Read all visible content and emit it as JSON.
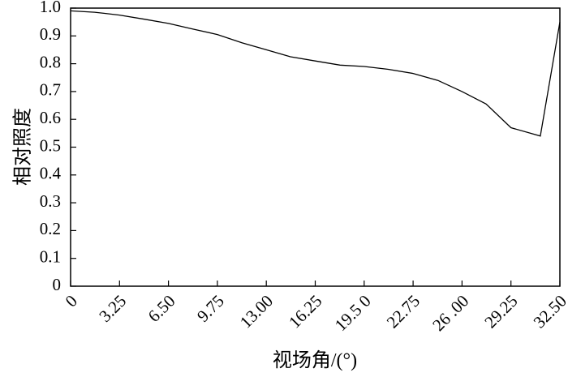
{
  "chart_data": {
    "type": "line",
    "title": "",
    "xlabel": "视场角/(°)",
    "ylabel": "相对照度",
    "xlim": [
      0,
      32.5
    ],
    "ylim": [
      0,
      1.0
    ],
    "grid": false,
    "x_ticks": [
      0,
      3.25,
      6.5,
      9.75,
      13.0,
      16.25,
      19.5,
      22.75,
      26.0,
      29.25,
      32.5
    ],
    "x_tick_labels": [
      "0",
      "3.25",
      "6.50",
      "9.75",
      "13.00",
      "16.25",
      "19.5 0",
      "22.75",
      "26 .00",
      "29.25",
      "32.50"
    ],
    "y_ticks": [
      0,
      0.1,
      0.2,
      0.3,
      0.4,
      0.5,
      0.6,
      0.7,
      0.8,
      0.9,
      1.0
    ],
    "y_tick_labels": [
      "0",
      "0.1",
      "0.2",
      "0.3",
      "0.4",
      "0.5",
      "0.6",
      "0.7",
      "0.8",
      "0.9",
      "1.0"
    ],
    "series": [
      {
        "x": [
          0,
          1.6,
          3.25,
          4.9,
          6.5,
          8.1,
          9.75,
          11.4,
          13.0,
          14.6,
          16.25,
          17.9,
          19.5,
          21.1,
          22.75,
          24.4,
          26.0,
          27.6,
          29.25,
          31.2,
          32.5
        ],
        "y": [
          0.99,
          0.985,
          0.975,
          0.96,
          0.945,
          0.925,
          0.905,
          0.875,
          0.85,
          0.825,
          0.81,
          0.795,
          0.79,
          0.78,
          0.765,
          0.74,
          0.7,
          0.655,
          0.57,
          0.54,
          0.95
        ]
      }
    ]
  }
}
